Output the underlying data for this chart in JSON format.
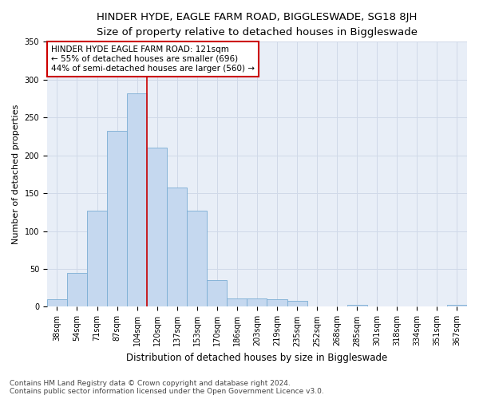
{
  "title": "HINDER HYDE, EAGLE FARM ROAD, BIGGLESWADE, SG18 8JH",
  "subtitle": "Size of property relative to detached houses in Biggleswade",
  "xlabel": "Distribution of detached houses by size in Biggleswade",
  "ylabel": "Number of detached properties",
  "bin_labels": [
    "38sqm",
    "54sqm",
    "71sqm",
    "87sqm",
    "104sqm",
    "120sqm",
    "137sqm",
    "153sqm",
    "170sqm",
    "186sqm",
    "203sqm",
    "219sqm",
    "235sqm",
    "252sqm",
    "268sqm",
    "285sqm",
    "301sqm",
    "318sqm",
    "334sqm",
    "351sqm",
    "367sqm"
  ],
  "bar_heights": [
    10,
    45,
    127,
    232,
    282,
    210,
    158,
    127,
    35,
    11,
    11,
    10,
    8,
    0,
    0,
    3,
    0,
    0,
    0,
    0,
    3
  ],
  "bar_color": "#c5d8ef",
  "bar_edge_color": "#7aadd4",
  "vline_x_index": 4.5,
  "vline_color": "#cc0000",
  "annotation_line1": "HINDER HYDE EAGLE FARM ROAD: 121sqm",
  "annotation_line2": "← 55% of detached houses are smaller (696)",
  "annotation_line3": "44% of semi-detached houses are larger (560) →",
  "annotation_box_color": "#ffffff",
  "annotation_border_color": "#cc0000",
  "ylim": [
    0,
    350
  ],
  "yticks": [
    0,
    50,
    100,
    150,
    200,
    250,
    300,
    350
  ],
  "grid_color": "#d0d9e8",
  "bg_color": "#e8eef7",
  "footnote1": "Contains HM Land Registry data © Crown copyright and database right 2024.",
  "footnote2": "Contains public sector information licensed under the Open Government Licence v3.0.",
  "title_fontsize": 9.5,
  "subtitle_fontsize": 8.5,
  "xlabel_fontsize": 8.5,
  "ylabel_fontsize": 8,
  "tick_fontsize": 7,
  "annotation_fontsize": 7.5,
  "footnote_fontsize": 6.5
}
